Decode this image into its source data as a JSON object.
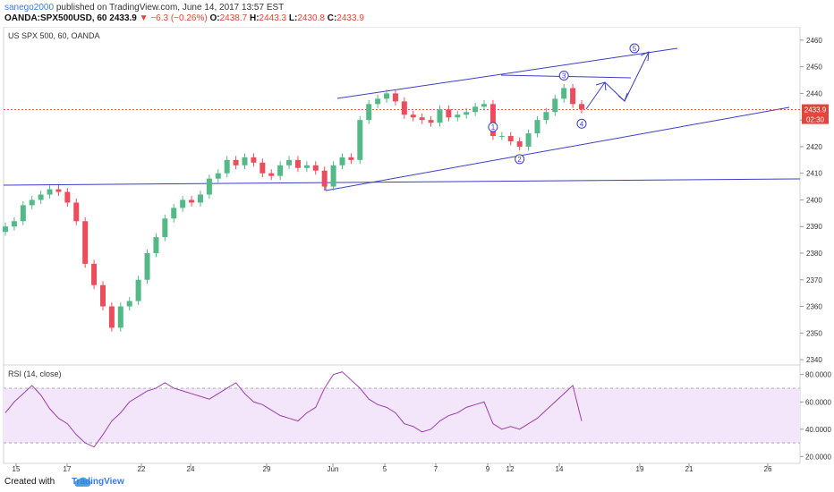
{
  "header": {
    "user": "sanego2000",
    "published": "published on TradingView.com, June 14, 2017 13:57 EST",
    "symbol": "OANDA:SPX500USD, 60",
    "last": "2433.9",
    "change_arrow": "▼",
    "change": "−6.3 (−0.26%)",
    "o_label": "O:",
    "o_value": "2438.7",
    "h_label": "H:",
    "h_value": "2443.3",
    "l_label": "L:",
    "l_value": "2430.8",
    "c_label": "C:",
    "c_value": "2433.9"
  },
  "chart_data": [
    {
      "type": "candlestick",
      "title": "US SPX 500, 60, OANDA",
      "x_ticks": [
        "15",
        "17",
        "22",
        "24",
        "29",
        "Jun",
        "5",
        "7",
        "9",
        "12",
        "14",
        "19",
        "21",
        "26"
      ],
      "y_ticks": [
        2340,
        2350,
        2360,
        2370,
        2380,
        2390,
        2400,
        2410,
        2420,
        2430,
        2440,
        2450,
        2460
      ],
      "ylim": [
        2338,
        2465
      ],
      "price_label": "2433.9",
      "countdown_label": "02:30",
      "current_price": 2433.9,
      "series": [
        {
          "name": "",
          "values": [
            2390,
            2392,
            2398,
            2400,
            2402,
            2404,
            2403,
            2399,
            2392,
            2376,
            2368,
            2360,
            2352,
            2360,
            2362,
            2370,
            2380,
            2386,
            2393,
            2397,
            2400,
            2399,
            2402,
            2408,
            2410,
            2415,
            2413,
            2416,
            2414,
            2410,
            2409,
            2413,
            2415,
            2412,
            2413,
            2411,
            2405,
            2413,
            2416,
            2415,
            2430,
            2436,
            2438,
            2440,
            2437,
            2432,
            2431,
            2430,
            2429,
            2434,
            2431,
            2432,
            2433,
            2435,
            2436,
            2424,
            2424,
            2422,
            2420,
            2425,
            2430,
            2433,
            2438,
            2442,
            2436,
            2434
          ]
        }
      ],
      "wave_labels": [
        "1",
        "2",
        "3",
        "4",
        "5"
      ],
      "colors": {
        "up": "#53b987",
        "down": "#eb4d5c",
        "trendline": "#3d3dc8",
        "price_line": "#e0443a"
      }
    },
    {
      "type": "line",
      "title": "RSI (14, close)",
      "y_ticks": [
        "20.0000",
        "40.0000",
        "60.0000",
        "80.0000"
      ],
      "ylim": [
        15,
        87
      ],
      "band": [
        30,
        70
      ],
      "series": [
        {
          "name": "",
          "values": [
            52,
            60,
            66,
            72,
            65,
            55,
            48,
            44,
            36,
            30,
            27,
            36,
            46,
            52,
            60,
            64,
            68,
            70,
            74,
            70,
            68,
            66,
            64,
            62,
            66,
            70,
            74,
            66,
            60,
            58,
            54,
            50,
            48,
            46,
            52,
            56,
            70,
            80,
            82,
            76,
            70,
            62,
            58,
            56,
            52,
            44,
            42,
            38,
            40,
            46,
            50,
            52,
            56,
            58,
            60,
            44,
            40,
            42,
            40,
            44,
            48,
            54,
            60,
            66,
            72,
            46
          ]
        }
      ],
      "colors": {
        "line": "#9b3fae",
        "band": "#f3e6fb"
      }
    }
  ],
  "footer": {
    "created_with": "Created with",
    "brand": "TradingView"
  }
}
